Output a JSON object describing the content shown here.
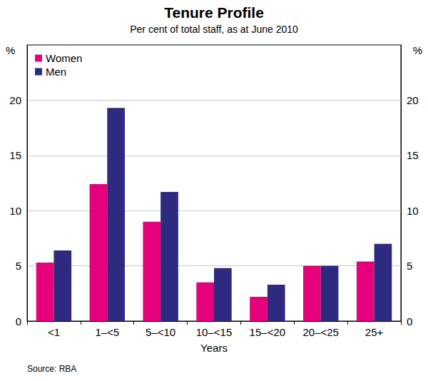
{
  "chart_data": {
    "type": "bar",
    "title": "Tenure Profile",
    "subtitle": "Per cent of total staff, as at June 2010",
    "x_label": "Years",
    "y_label": "%",
    "y2_label": "%",
    "source": "Source: RBA",
    "categories": [
      "<1",
      "1–<5",
      "5–<10",
      "10–<15",
      "15–<20",
      "20–<25",
      "25+"
    ],
    "series": [
      {
        "name": "Women",
        "color": "#e6007e",
        "values": [
          5.3,
          12.4,
          9.0,
          3.5,
          2.2,
          5.0,
          5.4
        ]
      },
      {
        "name": "Men",
        "color": "#2e2a80",
        "values": [
          6.4,
          19.3,
          11.7,
          4.8,
          3.3,
          5.0,
          7.0
        ]
      }
    ],
    "ylim": [
      0,
      25
    ],
    "yticks": [
      0,
      5,
      10,
      15,
      20
    ],
    "y2lim": [
      0,
      25
    ],
    "y2ticks": [
      0,
      5,
      10,
      15,
      20
    ],
    "grid": true,
    "legend": "upper left"
  }
}
